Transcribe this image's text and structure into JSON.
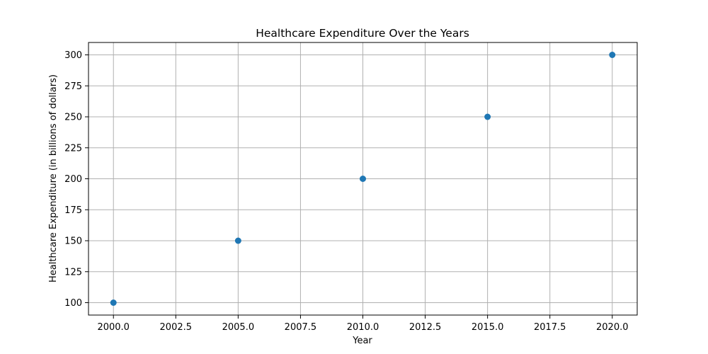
{
  "chart_data": {
    "type": "scatter",
    "title": "Healthcare Expenditure Over the Years",
    "xlabel": "Year",
    "ylabel": "Healthcare Expenditure (in billions of dollars)",
    "x": [
      2000,
      2005,
      2010,
      2015,
      2020
    ],
    "y": [
      100,
      150,
      200,
      250,
      300
    ],
    "xlim": [
      1999,
      2021
    ],
    "ylim": [
      90,
      310
    ],
    "xticks": [
      2000,
      2002.5,
      2005,
      2007.5,
      2010,
      2012.5,
      2015,
      2017.5,
      2020
    ],
    "xtick_labels": [
      "2000.0",
      "2002.5",
      "2005.0",
      "2007.5",
      "2010.0",
      "2012.5",
      "2015.0",
      "2017.5",
      "2020.0"
    ],
    "yticks": [
      100,
      125,
      150,
      175,
      200,
      225,
      250,
      275,
      300
    ],
    "ytick_labels": [
      "100",
      "125",
      "150",
      "175",
      "200",
      "225",
      "250",
      "275",
      "300"
    ],
    "grid": true,
    "colors": {
      "marker": "#1f77b4",
      "grid": "#b0b0b0",
      "axes": "#000000"
    }
  }
}
